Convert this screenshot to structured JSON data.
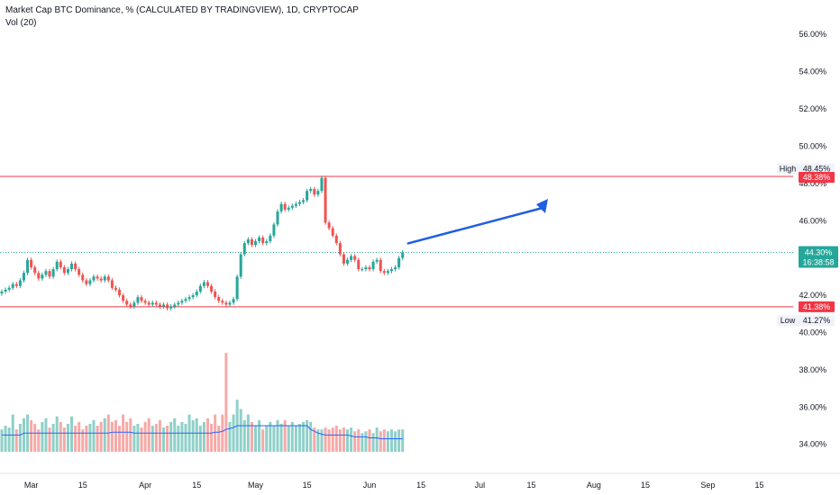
{
  "header": {
    "title": "Market Cap BTC Dominance, % (CALCULATED BY TRADINGVIEW), 1D, CRYPTOCAP",
    "volume_label": "Vol (20)"
  },
  "colors": {
    "up": "#26a69a",
    "down": "#ef5350",
    "up_volume": "#8fd0c8",
    "down_volume": "#f6a9a7",
    "level_line": "#f23645",
    "ma_line": "#2962ff",
    "arrow": "#1f5fe0"
  },
  "chart_data": {
    "type": "candlestick",
    "title": "Market Cap BTC Dominance, % (CALCULATED BY TRADINGVIEW), 1D, CRYPTOCAP",
    "y_unit": "%",
    "y_range": [
      33.6,
      56.3
    ],
    "y_ticks": [
      "56.00%",
      "54.00%",
      "52.00%",
      "50.00%",
      "48.00%",
      "46.00%",
      "44.00%",
      "42.00%",
      "40.00%",
      "38.00%",
      "36.00%",
      "34.00%"
    ],
    "x_start": "2023-02-21",
    "x_ticks": [
      {
        "date": "2023-03-01",
        "label": "Mar"
      },
      {
        "date": "2023-03-15",
        "label": "15"
      },
      {
        "date": "2023-04-01",
        "label": "Apr"
      },
      {
        "date": "2023-04-15",
        "label": "15"
      },
      {
        "date": "2023-05-01",
        "label": "May"
      },
      {
        "date": "2023-05-15",
        "label": "15"
      },
      {
        "date": "2023-06-01",
        "label": "Jun"
      },
      {
        "date": "2023-06-15",
        "label": "15"
      },
      {
        "date": "2023-07-01",
        "label": "Jul"
      },
      {
        "date": "2023-07-15",
        "label": "15"
      },
      {
        "date": "2023-08-01",
        "label": "Aug"
      },
      {
        "date": "2023-08-15",
        "label": "15"
      },
      {
        "date": "2023-09-01",
        "label": "Sep"
      },
      {
        "date": "2023-09-15",
        "label": "15"
      }
    ],
    "close": [
      42.2,
      42.3,
      42.4,
      42.6,
      42.5,
      42.8,
      43.2,
      43.9,
      43.5,
      43.2,
      42.9,
      43.1,
      43.3,
      43.0,
      43.4,
      43.8,
      43.5,
      43.2,
      43.4,
      43.7,
      43.4,
      43.1,
      42.8,
      42.6,
      42.8,
      43.0,
      42.9,
      42.8,
      43.0,
      42.8,
      42.4,
      42.3,
      42.0,
      41.7,
      41.5,
      41.4,
      41.6,
      41.9,
      41.7,
      41.6,
      41.5,
      41.6,
      41.5,
      41.4,
      41.5,
      41.3,
      41.4,
      41.5,
      41.6,
      41.7,
      41.8,
      41.9,
      42.0,
      42.2,
      42.5,
      42.7,
      42.5,
      42.2,
      41.9,
      41.7,
      41.6,
      41.5,
      41.6,
      41.8,
      43.0,
      44.2,
      44.8,
      45.0,
      44.7,
      44.9,
      45.1,
      44.8,
      44.9,
      45.2,
      45.8,
      46.5,
      46.9,
      46.6,
      46.7,
      46.8,
      46.9,
      47.0,
      47.1,
      47.6,
      47.7,
      47.4,
      47.6,
      48.3,
      45.9,
      45.6,
      45.2,
      44.8,
      44.2,
      43.7,
      43.9,
      44.1,
      43.9,
      43.4,
      43.4,
      43.5,
      43.4,
      43.8,
      43.9,
      43.3,
      43.2,
      43.3,
      43.4,
      43.5,
      44.0,
      44.3
    ],
    "volume": [
      34.8,
      35.0,
      34.9,
      35.6,
      34.8,
      35.1,
      35.4,
      35.6,
      35.3,
      35.1,
      34.8,
      35.2,
      35.4,
      34.9,
      35.1,
      35.5,
      35.2,
      34.9,
      35.1,
      35.5,
      35.0,
      35.2,
      34.8,
      35.0,
      35.1,
      35.3,
      35.0,
      35.2,
      35.4,
      35.6,
      35.2,
      35.3,
      35.0,
      35.6,
      35.2,
      35.4,
      35.0,
      35.1,
      34.9,
      35.2,
      35.4,
      35.0,
      35.1,
      35.3,
      34.9,
      35.0,
      35.2,
      35.4,
      35.0,
      35.2,
      35.1,
      35.6,
      35.3,
      35.4,
      35.0,
      35.2,
      35.4,
      35.1,
      35.6,
      35.0,
      35.6,
      38.9,
      35.2,
      35.6,
      36.4,
      35.9,
      35.3,
      35.6,
      35.2,
      35.0,
      35.3,
      34.8,
      35.0,
      35.2,
      35.0,
      35.3,
      35.1,
      35.3,
      35.0,
      35.2,
      35.0,
      35.1,
      35.2,
      35.3,
      35.2,
      34.9,
      34.8,
      34.8,
      34.9,
      34.8,
      34.9,
      35.0,
      34.8,
      34.9,
      34.8,
      34.9,
      34.7,
      34.8,
      34.6,
      34.7,
      34.8,
      34.6,
      34.9,
      34.7,
      34.8,
      34.7,
      34.8,
      34.7,
      34.8,
      34.8
    ],
    "volume_ma": [
      34.5,
      34.5,
      34.5,
      34.5,
      34.5,
      34.5,
      34.6,
      34.6,
      34.6,
      34.6,
      34.6,
      34.6,
      34.6,
      34.6,
      34.6,
      34.6,
      34.6,
      34.6,
      34.6,
      34.6,
      34.6,
      34.6,
      34.6,
      34.6,
      34.6,
      34.6,
      34.6,
      34.6,
      34.6,
      34.6,
      34.65,
      34.65,
      34.65,
      34.65,
      34.65,
      34.65,
      34.6,
      34.6,
      34.6,
      34.6,
      34.6,
      34.6,
      34.6,
      34.6,
      34.6,
      34.6,
      34.6,
      34.6,
      34.6,
      34.6,
      34.6,
      34.6,
      34.6,
      34.6,
      34.6,
      34.6,
      34.6,
      34.6,
      34.65,
      34.65,
      34.7,
      34.8,
      34.85,
      34.9,
      35.0,
      35.0,
      35.0,
      35.0,
      35.0,
      35.0,
      35.0,
      35.0,
      35.0,
      35.0,
      35.0,
      35.0,
      35.0,
      35.0,
      35.0,
      35.0,
      35.0,
      35.0,
      35.0,
      35.0,
      34.8,
      34.7,
      34.6,
      34.55,
      34.5,
      34.5,
      34.5,
      34.5,
      34.5,
      34.5,
      34.5,
      34.45,
      34.4,
      34.4,
      34.4,
      34.4,
      34.35,
      34.35,
      34.35,
      34.3,
      34.3,
      34.3,
      34.3,
      34.3,
      34.3,
      34.3
    ],
    "high_level": {
      "tag": "High",
      "value": "48.45%",
      "line": "48.38%"
    },
    "low_level": {
      "tag": "Low",
      "value": "41.27%",
      "line": "41.38%"
    },
    "last_price": {
      "value": "44.30%",
      "countdown": "16:38:58"
    },
    "grid": false,
    "legend": "none"
  }
}
